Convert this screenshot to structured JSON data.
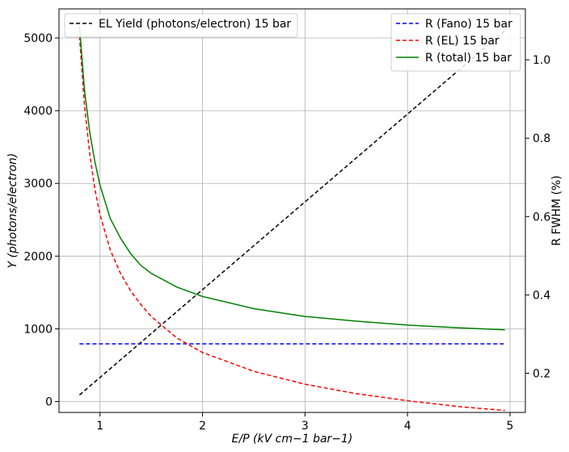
{
  "chart_data": {
    "type": "line",
    "grid": true,
    "x_axis": {
      "label": "E/P (kV cm−1 bar−1)",
      "range": [
        0.6,
        5.15
      ],
      "ticks": [
        1,
        2,
        3,
        4,
        5
      ],
      "tick_labels": [
        "1",
        "2",
        "3",
        "4",
        "5"
      ]
    },
    "y_left": {
      "label": "Y (photons/electron)",
      "range": [
        -150,
        5400
      ],
      "ticks": [
        0,
        1000,
        2000,
        3000,
        4000,
        5000
      ],
      "tick_labels": [
        "0",
        "1000",
        "2000",
        "3000",
        "4000",
        "5000"
      ]
    },
    "y_right": {
      "label": "R FWHM (%)",
      "range": [
        0.1,
        1.13
      ],
      "ticks": [
        0.2,
        0.4,
        0.6,
        0.8,
        1.0
      ],
      "tick_labels": [
        "0.2",
        "0.4",
        "0.6",
        "0.8",
        "1.0"
      ]
    },
    "legend_left": {
      "placement": "top-left",
      "entries": [
        {
          "label": "EL Yield (photons/electron) 15 bar",
          "color": "#000000",
          "dash": "dashed"
        }
      ]
    },
    "legend_right": {
      "placement": "top-right",
      "entries": [
        {
          "label": "R (Fano) 15 bar",
          "color": "#0000ff",
          "dash": "dashed"
        },
        {
          "label": "R (EL) 15 bar",
          "color": "#ff0000",
          "dash": "dashed"
        },
        {
          "label": "R (total) 15 bar",
          "color": "#008000",
          "dash": "solid"
        }
      ]
    },
    "series": [
      {
        "name": "EL Yield (photons/electron) 15 bar",
        "axis": "left",
        "color": "#000000",
        "dash": "dashed",
        "x": [
          0.8,
          4.95
        ],
        "y": [
          90,
          5100
        ]
      },
      {
        "name": "R (Fano) 15 bar",
        "axis": "right",
        "color": "#0000ff",
        "dash": "dashed",
        "x": [
          0.8,
          4.95
        ],
        "y": [
          0.275,
          0.275
        ]
      },
      {
        "name": "R (EL) 15 bar",
        "axis": "right",
        "color": "#ff0000",
        "dash": "dashed",
        "x": [
          0.8,
          0.85,
          0.9,
          0.95,
          1.0,
          1.1,
          1.2,
          1.3,
          1.4,
          1.5,
          1.75,
          2.0,
          2.5,
          3.0,
          3.5,
          4.0,
          4.5,
          4.95
        ],
        "y": [
          1.06,
          0.88,
          0.76,
          0.67,
          0.605,
          0.515,
          0.455,
          0.41,
          0.375,
          0.345,
          0.29,
          0.253,
          0.205,
          0.172,
          0.148,
          0.13,
          0.115,
          0.105
        ]
      },
      {
        "name": "R (total) 15 bar",
        "axis": "right",
        "color": "#008000",
        "dash": "solid",
        "x": [
          0.8,
          0.85,
          0.9,
          0.95,
          1.0,
          1.1,
          1.2,
          1.3,
          1.4,
          1.5,
          1.75,
          2.0,
          2.5,
          3.0,
          3.5,
          4.0,
          4.5,
          4.95
        ],
        "y": [
          1.085,
          0.92,
          0.815,
          0.74,
          0.68,
          0.595,
          0.545,
          0.505,
          0.475,
          0.455,
          0.42,
          0.396,
          0.365,
          0.345,
          0.333,
          0.323,
          0.316,
          0.311
        ]
      }
    ]
  }
}
